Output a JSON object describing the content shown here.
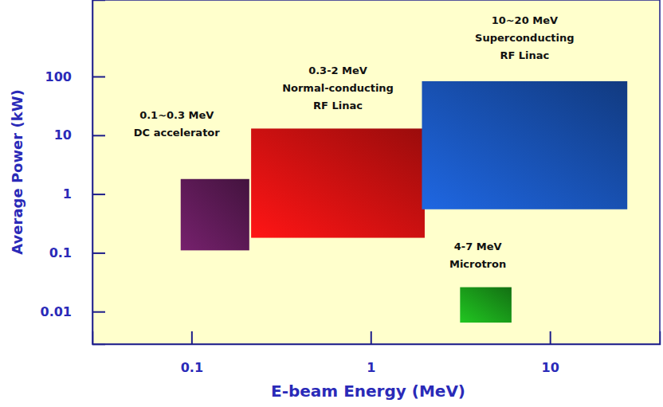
{
  "chart_data": {
    "type": "rectangle",
    "log": true,
    "x_label": "E-beam Energy (MeV)",
    "y_label": "Average Power (kW)",
    "xlim": [
      0.028,
      41
    ],
    "ylim": [
      0.0028,
      2000
    ],
    "xticks": [
      0.1,
      1,
      10
    ],
    "yticks": [
      0.01,
      0.1,
      1,
      10,
      100
    ],
    "series": [
      {
        "labels": [
          "0.1~0.3 MeV",
          "DC accelerator"
        ],
        "color": "#5c1a55",
        "x": [
          0.087,
          0.21
        ],
        "y": [
          0.11,
          1.8
        ]
      },
      {
        "labels": [
          "0.3-2 MeV",
          "Normal-conducting",
          "RF Linac"
        ],
        "color": "#d41010",
        "x": [
          0.215,
          2
        ],
        "y": [
          0.18,
          13
        ]
      },
      {
        "labels": [
          "10~20 MeV",
          "Superconducting",
          "RF Linac"
        ],
        "color": "#1850b0",
        "x": [
          1.93,
          27
        ],
        "y": [
          0.55,
          83
        ]
      },
      {
        "labels": [
          "4-7 MeV",
          "Microtron"
        ],
        "color": "#1a9a1a",
        "x": [
          3.15,
          6.1
        ],
        "y": [
          0.0065,
          0.026
        ]
      }
    ]
  }
}
